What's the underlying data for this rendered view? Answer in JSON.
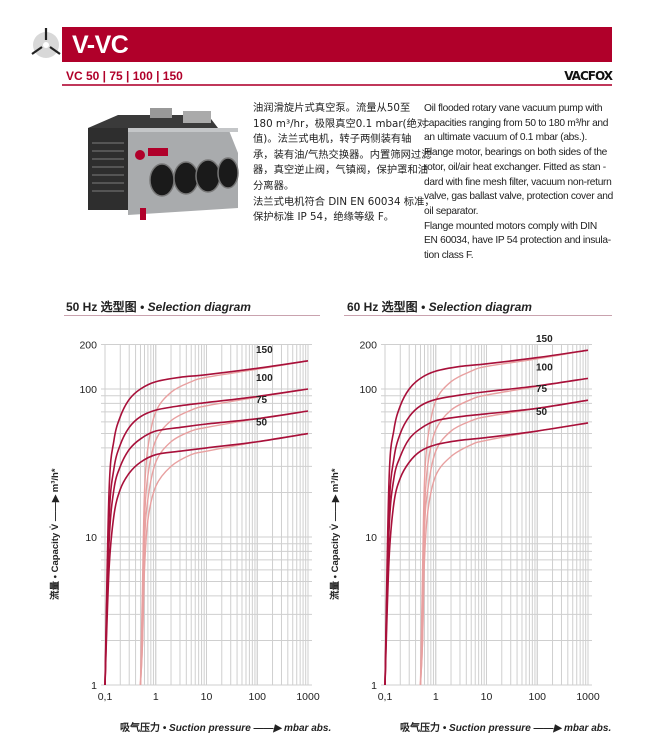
{
  "header": {
    "title": "V-VC",
    "models": "VC 50 | 75 | 100 | 150",
    "brand": "VACFOX",
    "accent_color": "#b0002a",
    "logo_icon": "fan-blade-icon"
  },
  "product_image": "rotary-vane-vacuum-pump-photo",
  "description_cn": [
    "油润滑旋片式真空泵。流量从50至",
    "180 m³/hr，极限真空0.1 mbar(绝对",
    "值)。法兰式电机，转子两侧装有轴",
    "承，装有油/气热交换器。内置筛网过滤",
    "器，真空逆止阀，气镇阀，保护罩和油",
    "分离器。",
    "法兰式电机符合 DIN EN 60034 标准，",
    "保护标准 IP 54，绝缘等级 F。"
  ],
  "description_en": [
    "Oil flooded rotary vane vacuum pump with",
    "capacities ranging from 50 to 180 m³/hr and",
    "an ultimate vacuum of 0.1 mbar (abs.).",
    "Flange motor, bearings on both sides of the",
    "rotor, oil/air heat exchanger. Fitted as stan -",
    "dard with fine mesh filter, vacuum non-return",
    "valve, gas ballast valve, protection cover and",
    "oil separator.",
    "Flange mounted motors comply with DIN",
    "EN 60034, have IP 54 protection and insula-",
    "tion class F."
  ],
  "chart_data": [
    {
      "type": "line",
      "title_cn": "50 Hz 选型图",
      "title_en": "• Selection diagram",
      "xlabel_cn": "吸气压力",
      "xlabel_en": "• Suction pressure ——▶ mbar abs.",
      "ylabel": "流量 • Capacity V̇ ——▶ m³/h*",
      "x_scale": "log",
      "y_scale": "log",
      "xlim": [
        0.1,
        1000
      ],
      "ylim": [
        1,
        200
      ],
      "x_ticks": [
        "0,1",
        "1",
        "10",
        "100",
        "1000"
      ],
      "y_ticks": [
        "1",
        "10",
        "100",
        "200"
      ],
      "grid": true,
      "colors": {
        "standard": "#a8103a",
        "gas_ballast": "#e8a0a0"
      },
      "x_standard": [
        0.1,
        0.12,
        0.15,
        0.2,
        0.3,
        0.5,
        1,
        3,
        10,
        100,
        1000
      ],
      "x_gas_ballast": [
        0.5,
        0.55,
        0.6,
        0.7,
        1,
        2,
        5,
        10,
        100,
        1000
      ],
      "series": [
        {
          "name": "150",
          "standard": [
            1,
            20,
            45,
            65,
            85,
            100,
            112,
            120,
            125,
            138,
            155
          ],
          "gas_ballast": [
            1,
            5,
            20,
            40,
            70,
            95,
            112,
            120,
            136,
            155
          ]
        },
        {
          "name": "100",
          "standard": [
            1,
            13,
            29,
            42,
            55,
            65,
            72,
            77,
            81,
            89,
            100
          ],
          "gas_ballast": [
            1,
            3,
            13,
            26,
            45,
            61,
            72,
            77,
            88,
            100
          ]
        },
        {
          "name": "75",
          "standard": [
            1,
            9,
            21,
            30,
            39,
            46,
            52,
            55,
            58,
            63,
            71
          ],
          "gas_ballast": [
            1,
            2,
            9,
            18,
            32,
            44,
            52,
            55,
            63,
            71
          ]
        },
        {
          "name": "50",
          "standard": [
            1,
            6,
            14,
            21,
            27,
            32,
            36,
            38,
            40,
            44,
            50
          ],
          "gas_ballast": [
            1,
            2,
            6,
            13,
            22,
            30,
            36,
            38,
            44,
            50
          ]
        }
      ]
    },
    {
      "type": "line",
      "title_cn": "60 Hz 选型图",
      "title_en": "• Selection diagram",
      "xlabel_cn": "吸气压力",
      "xlabel_en": "• Suction pressure ——▶ mbar abs.",
      "ylabel": "流量 • Capacity V̇ ——▶ m³/h*",
      "x_scale": "log",
      "y_scale": "log",
      "xlim": [
        0.1,
        1000
      ],
      "ylim": [
        1,
        200
      ],
      "x_ticks": [
        "0,1",
        "1",
        "10",
        "100",
        "1000"
      ],
      "y_ticks": [
        "1",
        "10",
        "100",
        "200"
      ],
      "grid": true,
      "colors": {
        "standard": "#a8103a",
        "gas_ballast": "#e8a0a0"
      },
      "x_standard": [
        0.1,
        0.12,
        0.15,
        0.2,
        0.3,
        0.5,
        1,
        3,
        10,
        100,
        1000
      ],
      "x_gas_ballast": [
        0.5,
        0.55,
        0.6,
        0.7,
        1,
        2,
        5,
        10,
        100,
        1000
      ],
      "series": [
        {
          "name": "150",
          "standard": [
            1,
            24,
            53,
            77,
            100,
            118,
            132,
            142,
            148,
            163,
            183
          ],
          "gas_ballast": [
            1,
            6,
            24,
            47,
            83,
            112,
            132,
            142,
            160,
            183
          ]
        },
        {
          "name": "100",
          "standard": [
            1,
            15,
            34,
            50,
            65,
            77,
            85,
            91,
            96,
            105,
            118
          ],
          "gas_ballast": [
            1,
            4,
            15,
            31,
            53,
            72,
            85,
            91,
            104,
            118
          ]
        },
        {
          "name": "75",
          "standard": [
            1,
            11,
            25,
            35,
            46,
            54,
            61,
            65,
            68,
            74,
            84
          ],
          "gas_ballast": [
            1,
            2,
            11,
            21,
            38,
            52,
            61,
            65,
            74,
            84
          ]
        },
        {
          "name": "50",
          "standard": [
            1,
            7,
            17,
            25,
            32,
            38,
            42,
            45,
            47,
            52,
            59
          ],
          "gas_ballast": [
            1,
            2,
            7,
            15,
            26,
            35,
            42,
            45,
            52,
            59
          ]
        }
      ]
    }
  ]
}
